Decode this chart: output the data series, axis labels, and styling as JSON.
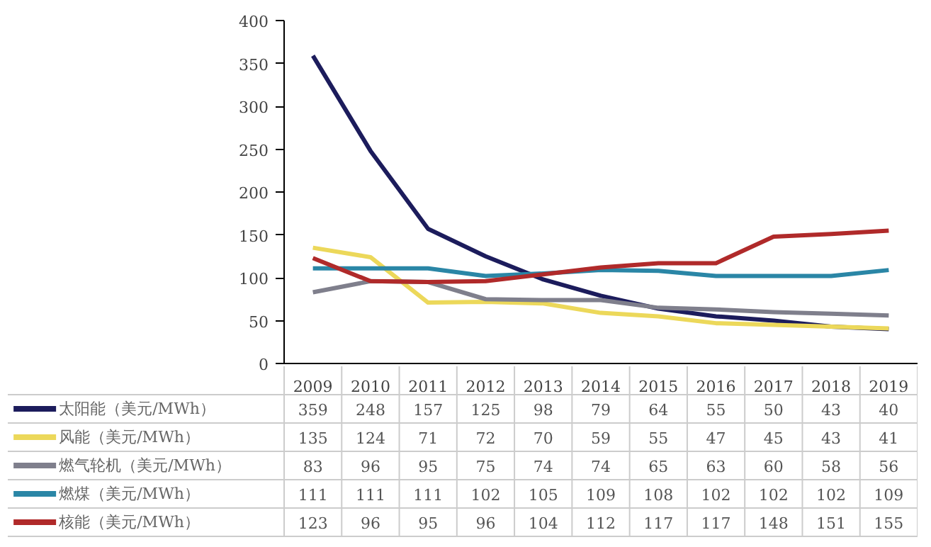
{
  "chart_data": {
    "type": "line",
    "categories": [
      "2009",
      "2010",
      "2011",
      "2012",
      "2013",
      "2014",
      "2015",
      "2016",
      "2017",
      "2018",
      "2019"
    ],
    "ylim": [
      0,
      400
    ],
    "yticks": [
      0,
      50,
      100,
      150,
      200,
      250,
      300,
      350,
      400
    ],
    "grid": false,
    "legend": "bottom",
    "data_labels": true,
    "line_style": "solid",
    "marker": "none",
    "series": [
      {
        "name": "太阳能（美元/MWh）",
        "color": "#1c1c5c",
        "values": [
          359,
          248,
          157,
          125,
          98,
          79,
          64,
          55,
          50,
          43,
          40
        ]
      },
      {
        "name": "风能（美元/MWh）",
        "color": "#ecd85a",
        "values": [
          135,
          124,
          71,
          72,
          70,
          59,
          55,
          47,
          45,
          43,
          41
        ]
      },
      {
        "name": "燃气轮机（美元/MWh）",
        "color": "#7f7f8c",
        "values": [
          83,
          96,
          95,
          75,
          74,
          74,
          65,
          63,
          60,
          58,
          56
        ]
      },
      {
        "name": "燃煤（美元/MWh）",
        "color": "#2a86a6",
        "values": [
          111,
          111,
          111,
          102,
          105,
          109,
          108,
          102,
          102,
          102,
          109
        ]
      },
      {
        "name": "核能（美元/MWh）",
        "color": "#b02a2a",
        "values": [
          123,
          96,
          95,
          96,
          104,
          112,
          117,
          117,
          148,
          151,
          155
        ]
      }
    ]
  }
}
